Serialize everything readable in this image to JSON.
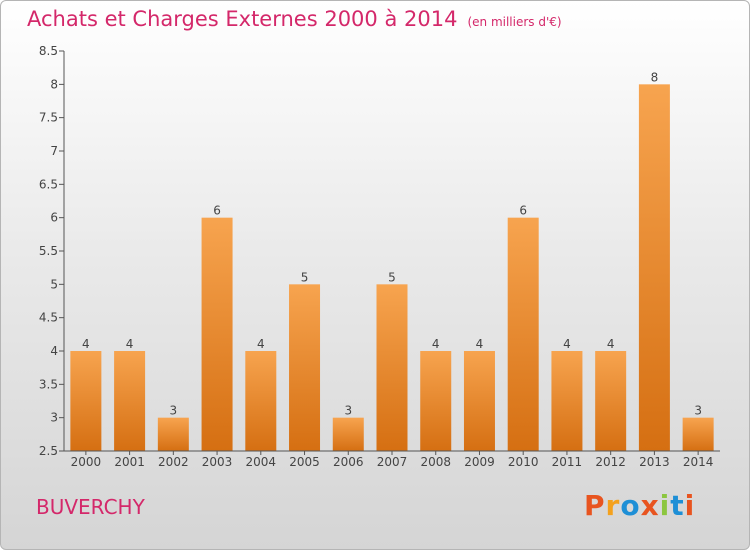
{
  "header": {
    "title": "Achats et Charges Externes 2000 à 2014",
    "subtitle": "(en milliers d'€)"
  },
  "footer": {
    "commune": "BUVERCHY",
    "brand": "Proxiti",
    "brand_colors": [
      "#e8541f",
      "#f4a11d",
      "#1e8fd6",
      "#e8541f",
      "#8cc63f",
      "#1e8fd6",
      "#e8541f"
    ]
  },
  "colors": {
    "bar_light": "#f7a44f",
    "bar_dark": "#d56f12",
    "title": "#d4286a",
    "axis": "#555555"
  },
  "chart_data": {
    "type": "bar",
    "title": "Achats et Charges Externes 2000 à 2014",
    "subtitle": "(en milliers d'€)",
    "categories": [
      "2000",
      "2001",
      "2002",
      "2003",
      "2004",
      "2005",
      "2006",
      "2007",
      "2008",
      "2009",
      "2010",
      "2011",
      "2012",
      "2013",
      "2014"
    ],
    "values": [
      4,
      4,
      3,
      6,
      4,
      5,
      3,
      5,
      4,
      4,
      6,
      4,
      4,
      8,
      3
    ],
    "data_labels": [
      "4",
      "4",
      "3",
      "6",
      "4",
      "5",
      "3",
      "5",
      "4",
      "4",
      "6",
      "4",
      "4",
      "8",
      "3"
    ],
    "ylim": [
      2.5,
      8.5
    ],
    "yticks": [
      "2.5",
      "3",
      "3.5",
      "4",
      "4.5",
      "5",
      "5.5",
      "6",
      "6.5",
      "7",
      "7.5",
      "8",
      "8.5"
    ],
    "xlabel": "",
    "ylabel": "",
    "grid": false,
    "legend": "none"
  }
}
